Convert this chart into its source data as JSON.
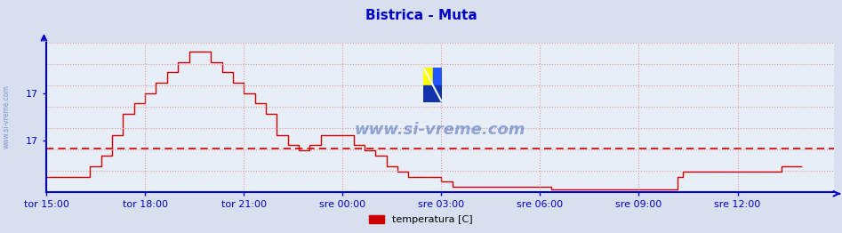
{
  "title": "Bistrica - Muta",
  "title_color": "#0000cc",
  "bg_color": "#d8e0f0",
  "plot_bg_color": "#e8eef8",
  "line_color": "#cc0000",
  "avg_line_color": "#cc0000",
  "avg_value": 16.87,
  "ylim": [
    16.45,
    17.88
  ],
  "xlim": [
    0,
    287
  ],
  "xtick_labels": [
    "tor 15:00",
    "tor 18:00",
    "tor 21:00",
    "sre 00:00",
    "sre 03:00",
    "sre 06:00",
    "sre 09:00",
    "sre 12:00"
  ],
  "xtick_positions": [
    0,
    36,
    72,
    108,
    144,
    180,
    216,
    252
  ],
  "ytick_label_top": "17",
  "ytick_label_mid": "17",
  "ytick_pos_top": 17.4,
  "ytick_pos_mid": 16.95,
  "watermark": "www.si-vreme.com",
  "legend_label": "temperatura [C]",
  "grid_color": "#dd9999",
  "axis_color": "#0000cc",
  "temperature_data": [
    16.6,
    16.6,
    16.6,
    16.6,
    16.6,
    16.6,
    16.6,
    16.6,
    16.6,
    16.6,
    16.6,
    16.6,
    16.6,
    16.6,
    16.6,
    16.6,
    16.7,
    16.7,
    16.7,
    16.7,
    16.8,
    16.8,
    16.8,
    16.8,
    17.0,
    17.0,
    17.0,
    17.0,
    17.2,
    17.2,
    17.2,
    17.2,
    17.3,
    17.3,
    17.3,
    17.3,
    17.4,
    17.4,
    17.4,
    17.4,
    17.5,
    17.5,
    17.5,
    17.5,
    17.6,
    17.6,
    17.6,
    17.6,
    17.7,
    17.7,
    17.7,
    17.7,
    17.8,
    17.8,
    17.8,
    17.8,
    17.8,
    17.8,
    17.8,
    17.8,
    17.7,
    17.7,
    17.7,
    17.7,
    17.6,
    17.6,
    17.6,
    17.6,
    17.5,
    17.5,
    17.5,
    17.5,
    17.4,
    17.4,
    17.4,
    17.4,
    17.3,
    17.3,
    17.3,
    17.3,
    17.2,
    17.2,
    17.2,
    17.2,
    17.0,
    17.0,
    17.0,
    17.0,
    16.9,
    16.9,
    16.9,
    16.9,
    16.85,
    16.85,
    16.85,
    16.85,
    16.9,
    16.9,
    16.9,
    16.9,
    17.0,
    17.0,
    17.0,
    17.0,
    17.0,
    17.0,
    17.0,
    17.0,
    17.0,
    17.0,
    17.0,
    17.0,
    16.9,
    16.9,
    16.9,
    16.9,
    16.85,
    16.85,
    16.85,
    16.85,
    16.8,
    16.8,
    16.8,
    16.8,
    16.7,
    16.7,
    16.7,
    16.7,
    16.65,
    16.65,
    16.65,
    16.65,
    16.6,
    16.6,
    16.6,
    16.6,
    16.6,
    16.6,
    16.6,
    16.6,
    16.6,
    16.6,
    16.6,
    16.6,
    16.55,
    16.55,
    16.55,
    16.55,
    16.5,
    16.5,
    16.5,
    16.5,
    16.5,
    16.5,
    16.5,
    16.5,
    16.5,
    16.5,
    16.5,
    16.5,
    16.5,
    16.5,
    16.5,
    16.5,
    16.5,
    16.5,
    16.5,
    16.5,
    16.5,
    16.5,
    16.5,
    16.5,
    16.5,
    16.5,
    16.5,
    16.5,
    16.5,
    16.5,
    16.5,
    16.5,
    16.5,
    16.5,
    16.5,
    16.5,
    16.48,
    16.48,
    16.48,
    16.48,
    16.48,
    16.48,
    16.48,
    16.48,
    16.48,
    16.48,
    16.48,
    16.48,
    16.48,
    16.48,
    16.48,
    16.48,
    16.48,
    16.48,
    16.48,
    16.48,
    16.48,
    16.48,
    16.48,
    16.48,
    16.48,
    16.48,
    16.48,
    16.48,
    16.48,
    16.48,
    16.48,
    16.48,
    16.48,
    16.48,
    16.48,
    16.48,
    16.48,
    16.48,
    16.48,
    16.48,
    16.48,
    16.48,
    16.48,
    16.48,
    16.48,
    16.48,
    16.6,
    16.6,
    16.65,
    16.65,
    16.65,
    16.65,
    16.65,
    16.65,
    16.65,
    16.65,
    16.65,
    16.65,
    16.65,
    16.65,
    16.65,
    16.65,
    16.65,
    16.65,
    16.65,
    16.65,
    16.65,
    16.65,
    16.65,
    16.65,
    16.65,
    16.65,
    16.65,
    16.65,
    16.65,
    16.65,
    16.65,
    16.65,
    16.65,
    16.65,
    16.65,
    16.65,
    16.65,
    16.65,
    16.7,
    16.7,
    16.7,
    16.7,
    16.7,
    16.7,
    16.7,
    16.7
  ]
}
